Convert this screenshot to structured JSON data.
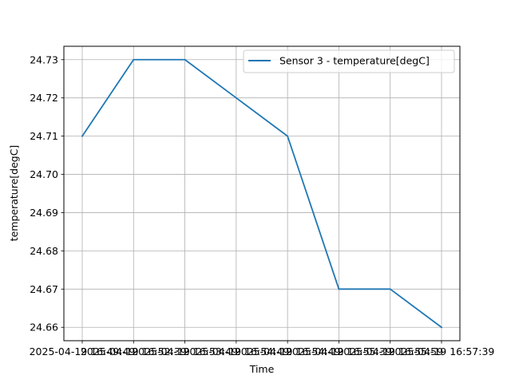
{
  "chart_data": {
    "type": "line",
    "title": "",
    "xlabel": "Time",
    "ylabel": "temperature[degC]",
    "x": [
      "2025-04-19 16:49:49",
      "2025-04-19 16:52:39",
      "2025-04-19 16:53:49",
      "2025-04-19 16:54:49",
      "2025-04-19 16:54:49",
      "2025-04-19 16:55:39",
      "2025-04-19 16:55:59",
      "2025-04-19 16:57:39"
    ],
    "series": [
      {
        "name": "Sensor 3 -  temperature[degC]",
        "color": "#1f77b4",
        "values": [
          24.71,
          24.73,
          24.73,
          24.72,
          24.71,
          24.67,
          24.67,
          24.66
        ]
      }
    ],
    "yticks": [
      24.66,
      24.67,
      24.68,
      24.69,
      24.7,
      24.71,
      24.72,
      24.73
    ],
    "ytick_labels": [
      "24.66",
      "24.67",
      "24.68",
      "24.69",
      "24.70",
      "24.71",
      "24.72",
      "24.73"
    ],
    "ylim": [
      24.6565,
      24.7335
    ],
    "grid": true,
    "legend_position": "top-right"
  }
}
